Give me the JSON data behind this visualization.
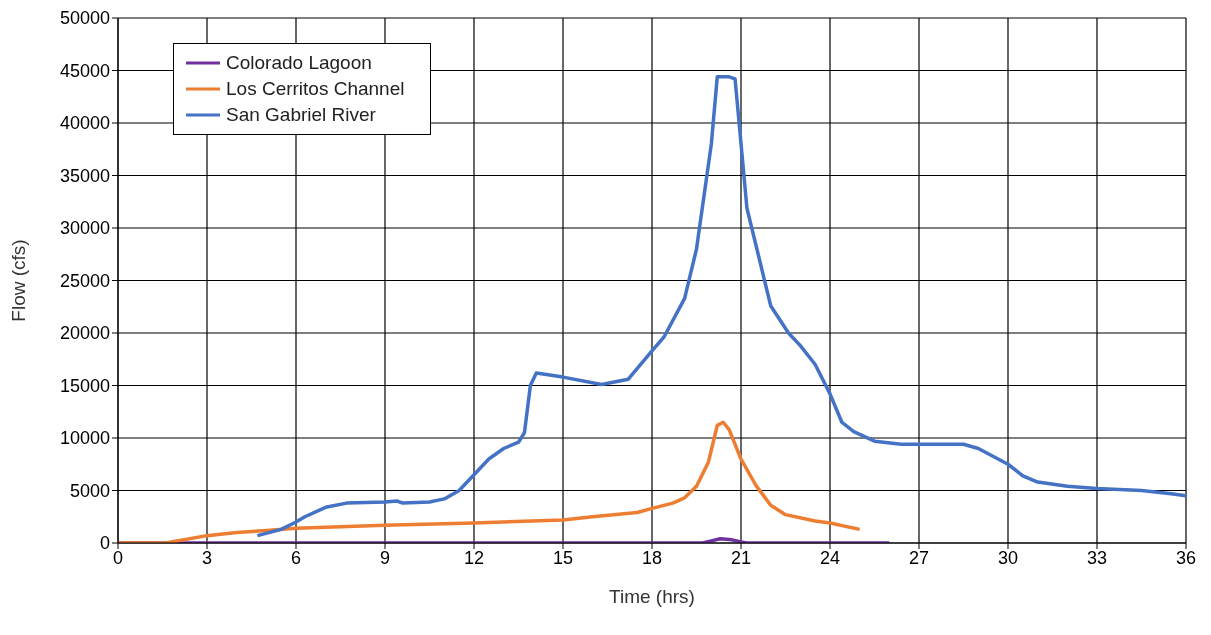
{
  "chart_data": {
    "type": "line",
    "xlabel": "Time (hrs)",
    "ylabel": "Flow (cfs)",
    "xlim": [
      0,
      36
    ],
    "xticks": [
      0,
      3,
      6,
      9,
      12,
      15,
      18,
      21,
      24,
      27,
      30,
      33,
      36
    ],
    "ylim": [
      0,
      50000
    ],
    "yticks": [
      0,
      5000,
      10000,
      15000,
      20000,
      25000,
      30000,
      35000,
      40000,
      45000,
      50000
    ],
    "grid": true,
    "legend": "top left",
    "marker": "none",
    "line_style": "solid",
    "series": [
      {
        "name": "Colorado Lagoon",
        "color": "#7030a0",
        "x": [
          0,
          19.7,
          20,
          20.3,
          20.7,
          21,
          21.2,
          26
        ],
        "values": [
          0,
          0,
          200,
          400,
          300,
          100,
          0,
          0
        ]
      },
      {
        "name": "Los Cerritos Channel",
        "color": "#ed7d31",
        "x": [
          0,
          1.6,
          3,
          4,
          5,
          6,
          9,
          12,
          15,
          16,
          17.5,
          18,
          18.7,
          19.1,
          19.5,
          19.9,
          20.2,
          20.4,
          20.6,
          21,
          21.5,
          22,
          22.5,
          23.5,
          24,
          25
        ],
        "values": [
          0,
          0,
          700,
          1000,
          1200,
          1400,
          1700,
          1900,
          2200,
          2500,
          2900,
          3300,
          3800,
          4300,
          5400,
          7700,
          11200,
          11500,
          10800,
          8000,
          5500,
          3600,
          2700,
          2100,
          1900,
          1300
        ]
      },
      {
        "name": "San Gabriel River",
        "color": "#4472c4",
        "x": [
          4.7,
          5.5,
          6,
          6.3,
          7,
          7.7,
          9,
          9.4,
          9.6,
          10.5,
          11,
          11.5,
          12,
          12.5,
          13,
          13.5,
          13.7,
          13.9,
          14.1,
          15,
          16.3,
          17.2,
          18,
          18.4,
          19.1,
          19.5,
          20,
          20.2,
          20.6,
          20.8,
          21.2,
          22,
          22.6,
          23,
          23.5,
          24,
          24.4,
          24.8,
          25.5,
          26.4,
          28.5,
          29,
          30,
          30.5,
          31,
          32,
          33,
          34.5,
          35.5,
          36
        ],
        "values": [
          700,
          1300,
          2000,
          2500,
          3400,
          3800,
          3900,
          4000,
          3800,
          3900,
          4200,
          5000,
          6500,
          8000,
          9000,
          9600,
          10500,
          15000,
          16200,
          15800,
          15100,
          15600,
          18300,
          19600,
          23300,
          28000,
          38000,
          44400,
          44400,
          44200,
          31900,
          22600,
          20000,
          18800,
          17000,
          14200,
          11500,
          10600,
          9700,
          9400,
          9400,
          9000,
          7500,
          6400,
          5800,
          5400,
          5200,
          5000,
          4700,
          4500
        ]
      }
    ]
  }
}
